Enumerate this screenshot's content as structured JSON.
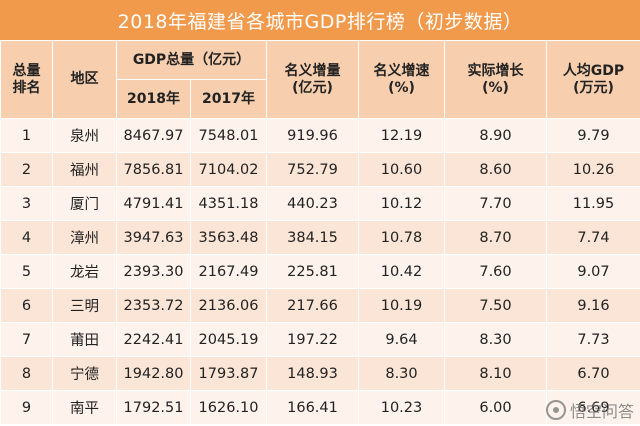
{
  "title": "2018年福建省各城市GDP排行榜（初步数据）",
  "headers": {
    "rank": "总量\n排名",
    "region": "地区",
    "gdp_group": "GDP总量（亿元）",
    "year_2018": "2018年",
    "year_2017": "2017年",
    "nominal_increase": "名义增量\n(亿元)",
    "nominal_growth": "名义增速\n(%)",
    "real_growth": "实际增长\n(%)",
    "per_capita": "人均GDP\n(万元)"
  },
  "rows": [
    {
      "rank": "1",
      "region": "泉州",
      "gdp2018": "8467.97",
      "gdp2017": "7548.01",
      "increase": "919.96",
      "nominal": "12.19",
      "real": "8.90",
      "per_capita": "9.79"
    },
    {
      "rank": "2",
      "region": "福州",
      "gdp2018": "7856.81",
      "gdp2017": "7104.02",
      "increase": "752.79",
      "nominal": "10.60",
      "real": "8.60",
      "per_capita": "10.26"
    },
    {
      "rank": "3",
      "region": "厦门",
      "gdp2018": "4791.41",
      "gdp2017": "4351.18",
      "increase": "440.23",
      "nominal": "10.12",
      "real": "7.70",
      "per_capita": "11.95"
    },
    {
      "rank": "4",
      "region": "漳州",
      "gdp2018": "3947.63",
      "gdp2017": "3563.48",
      "increase": "384.15",
      "nominal": "10.78",
      "real": "8.70",
      "per_capita": "7.74"
    },
    {
      "rank": "5",
      "region": "龙岩",
      "gdp2018": "2393.30",
      "gdp2017": "2167.49",
      "increase": "225.81",
      "nominal": "10.42",
      "real": "7.60",
      "per_capita": "9.07"
    },
    {
      "rank": "6",
      "region": "三明",
      "gdp2018": "2353.72",
      "gdp2017": "2136.06",
      "increase": "217.66",
      "nominal": "10.19",
      "real": "7.50",
      "per_capita": "9.16"
    },
    {
      "rank": "7",
      "region": "莆田",
      "gdp2018": "2242.41",
      "gdp2017": "2045.19",
      "increase": "197.22",
      "nominal": "9.64",
      "real": "8.30",
      "per_capita": "7.73"
    },
    {
      "rank": "8",
      "region": "宁德",
      "gdp2018": "1942.80",
      "gdp2017": "1793.87",
      "increase": "148.93",
      "nominal": "8.30",
      "real": "8.10",
      "per_capita": "6.70"
    },
    {
      "rank": "9",
      "region": "南平",
      "gdp2018": "1792.51",
      "gdp2017": "1626.10",
      "increase": "166.41",
      "nominal": "10.23",
      "real": "6.00",
      "per_capita": "6.69"
    }
  ],
  "watermark": "悟空问答",
  "colors": {
    "title_bg": "#f19a4c",
    "header_bg": "#f7cfae",
    "row_odd": "#fdf3ec",
    "row_even": "#fbe5d6"
  }
}
